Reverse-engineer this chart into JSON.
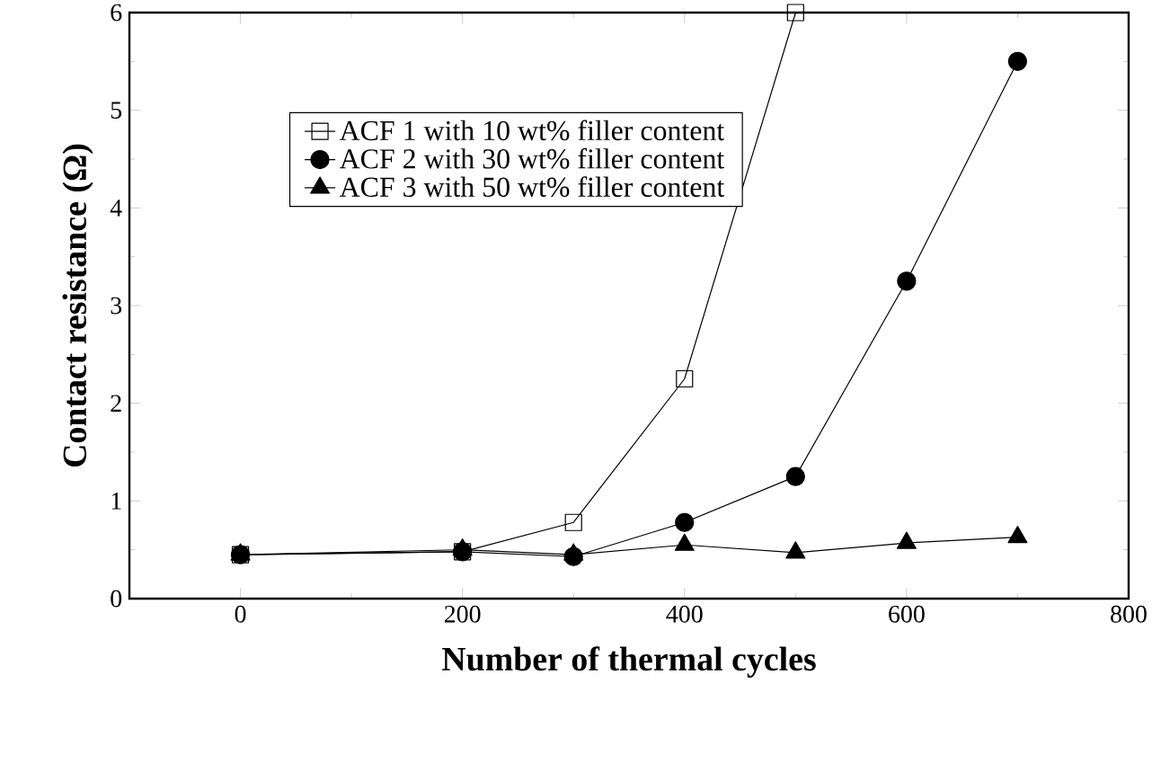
{
  "chart_data": {
    "type": "line",
    "xlabel": "Number of thermal cycles",
    "ylabel": "Contact resistance (Ω)",
    "xlim": [
      -100,
      800
    ],
    "xticks": [
      0,
      200,
      400,
      600,
      800
    ],
    "ylim": [
      0,
      6
    ],
    "yticks": [
      0,
      1,
      2,
      3,
      4,
      5,
      6
    ],
    "legend": "top",
    "line_style": "solid",
    "grid": false,
    "series": [
      {
        "name": "ACF 1 with 10 wt% filler content",
        "color": "#000000",
        "marker": "square",
        "x": [
          0,
          200,
          300,
          400,
          500
        ],
        "values": [
          0.45,
          0.48,
          0.78,
          2.25,
          6.0
        ]
      },
      {
        "name": "ACF 2 with 30 wt% filler content",
        "color": "#000000",
        "marker": "circle",
        "x": [
          0,
          200,
          300,
          400,
          500,
          600,
          700
        ],
        "values": [
          0.45,
          0.48,
          0.43,
          0.78,
          1.25,
          3.25,
          5.5
        ]
      },
      {
        "name": "ACF 3 with 50 wt% filler content",
        "color": "#000000",
        "marker": "triangle",
        "x": [
          0,
          200,
          300,
          400,
          500,
          600,
          700
        ],
        "values": [
          0.45,
          0.5,
          0.45,
          0.55,
          0.47,
          0.57,
          0.63
        ]
      }
    ]
  }
}
